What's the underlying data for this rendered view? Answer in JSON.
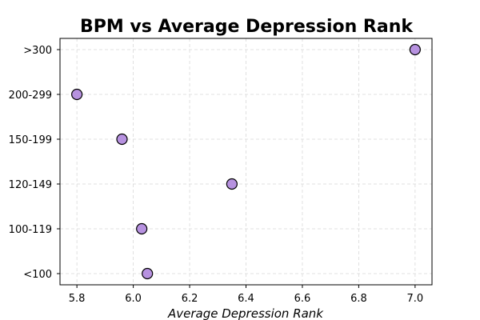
{
  "chart_data": {
    "type": "scatter",
    "title": "BPM vs Average Depression Rank",
    "xlabel": "Average Depression Rank",
    "ylabel": "",
    "categories": [
      "<100",
      "100-119",
      "120-149",
      "150-199",
      "200-299",
      ">300"
    ],
    "x_ticks": [
      "5.8",
      "6.0",
      "6.2",
      "6.4",
      "6.6",
      "6.8",
      "7.0"
    ],
    "xlim": [
      5.74,
      7.06
    ],
    "grid": true,
    "marker_color": "#b792e0",
    "marker_edge_color": "#000000",
    "points": [
      {
        "category": "<100",
        "x": 6.05
      },
      {
        "category": "100-119",
        "x": 6.03
      },
      {
        "category": "120-149",
        "x": 6.35
      },
      {
        "category": "150-199",
        "x": 5.96
      },
      {
        "category": "200-299",
        "x": 5.8
      },
      {
        "category": ">300",
        "x": 7.0
      }
    ]
  }
}
